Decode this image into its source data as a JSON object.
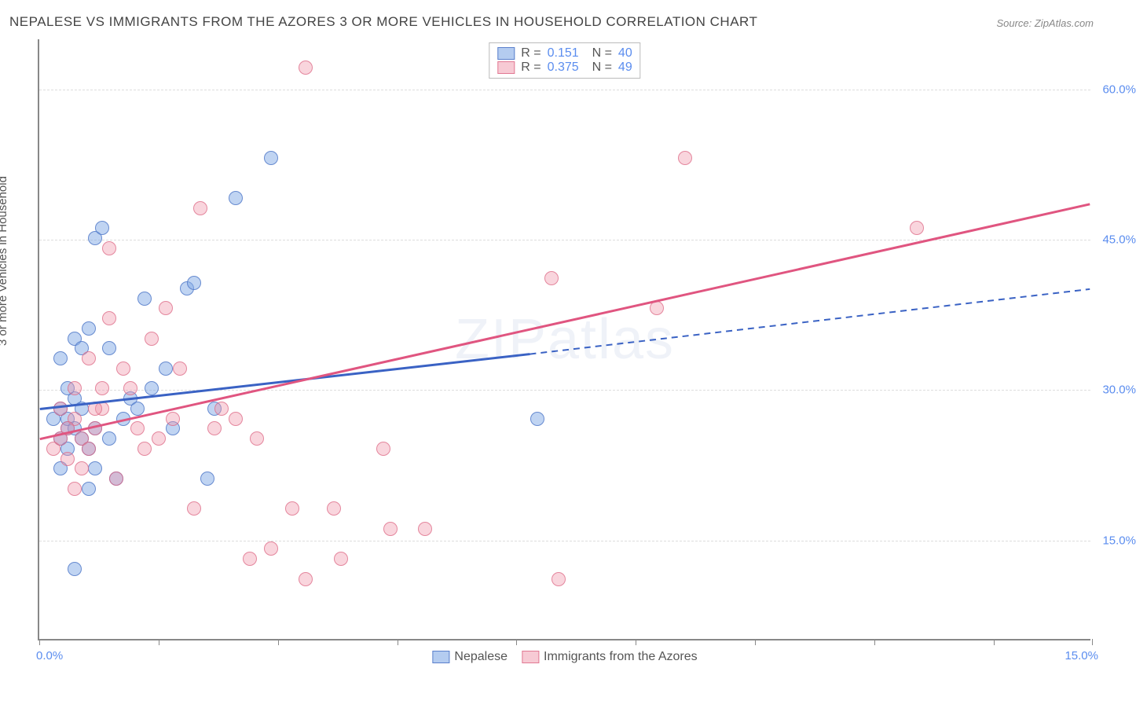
{
  "title": "NEPALESE VS IMMIGRANTS FROM THE AZORES 3 OR MORE VEHICLES IN HOUSEHOLD CORRELATION CHART",
  "source": "Source: ZipAtlas.com",
  "ylabel": "3 or more Vehicles in Household",
  "watermark": "ZIPatlas",
  "chart": {
    "type": "scatter",
    "xlim": [
      0,
      15
    ],
    "ylim": [
      5,
      65
    ],
    "y_ticks": [
      15,
      30,
      45,
      60
    ],
    "y_tick_labels": [
      "15.0%",
      "30.0%",
      "45.0%",
      "60.0%"
    ],
    "x_ticks": [
      0,
      1.7,
      3.4,
      5.1,
      6.8,
      8.5,
      10.2,
      11.9,
      13.6,
      15.0
    ],
    "x_axis_labels": {
      "left": "0.0%",
      "right": "15.0%"
    },
    "point_radius": 9,
    "background_color": "#ffffff",
    "grid_color": "#dddddd",
    "series": [
      {
        "name": "Nepalese",
        "key": "a",
        "color": "#82aae6",
        "border": "#5078c8",
        "R": "0.151",
        "N": "40",
        "line": {
          "x1": 0,
          "y1": 28,
          "x2_solid": 7,
          "y2_solid": 33.5,
          "x2_dashed": 15,
          "y2_dashed": 40,
          "color": "#3a62c4",
          "width": 3
        },
        "points": [
          [
            0.2,
            27
          ],
          [
            0.3,
            25
          ],
          [
            0.4,
            26
          ],
          [
            0.3,
            28
          ],
          [
            0.4,
            24
          ],
          [
            0.5,
            29
          ],
          [
            0.3,
            22
          ],
          [
            0.4,
            30
          ],
          [
            0.5,
            35
          ],
          [
            0.6,
            34
          ],
          [
            0.3,
            33
          ],
          [
            0.7,
            36
          ],
          [
            0.4,
            27
          ],
          [
            0.5,
            26
          ],
          [
            0.6,
            28
          ],
          [
            0.8,
            45
          ],
          [
            0.9,
            46
          ],
          [
            0.7,
            20
          ],
          [
            0.8,
            22
          ],
          [
            1.0,
            25
          ],
          [
            1.1,
            21
          ],
          [
            1.3,
            29
          ],
          [
            1.4,
            28
          ],
          [
            1.6,
            30
          ],
          [
            1.9,
            26
          ],
          [
            2.1,
            40
          ],
          [
            2.2,
            40.5
          ],
          [
            2.4,
            21
          ],
          [
            2.5,
            28
          ],
          [
            0.5,
            12
          ],
          [
            2.8,
            49
          ],
          [
            3.3,
            53
          ],
          [
            7.1,
            27
          ],
          [
            0.8,
            26
          ],
          [
            1.5,
            39
          ],
          [
            1.0,
            34
          ],
          [
            1.2,
            27
          ],
          [
            0.6,
            25
          ],
          [
            0.7,
            24
          ],
          [
            1.8,
            32
          ]
        ]
      },
      {
        "name": "Immigrants from the Azores",
        "key": "b",
        "color": "#f096aa",
        "border": "#dc6482",
        "R": "0.375",
        "N": "49",
        "line": {
          "x1": 0,
          "y1": 25,
          "x2_solid": 15,
          "y2_solid": 48.5,
          "color": "#e05580",
          "width": 3
        },
        "points": [
          [
            0.2,
            24
          ],
          [
            0.3,
            25
          ],
          [
            0.4,
            23
          ],
          [
            0.3,
            28
          ],
          [
            0.5,
            27
          ],
          [
            0.6,
            25
          ],
          [
            0.5,
            30
          ],
          [
            0.7,
            24
          ],
          [
            0.8,
            26
          ],
          [
            0.9,
            28
          ],
          [
            0.4,
            26
          ],
          [
            0.7,
            33
          ],
          [
            0.9,
            30
          ],
          [
            1.0,
            37
          ],
          [
            1.0,
            44
          ],
          [
            1.2,
            32
          ],
          [
            1.4,
            26
          ],
          [
            1.5,
            24
          ],
          [
            1.6,
            35
          ],
          [
            1.8,
            38
          ],
          [
            1.9,
            27
          ],
          [
            2.0,
            32
          ],
          [
            2.2,
            18
          ],
          [
            2.3,
            48
          ],
          [
            2.5,
            26
          ],
          [
            2.8,
            27
          ],
          [
            3.0,
            13
          ],
          [
            3.1,
            25
          ],
          [
            3.3,
            14
          ],
          [
            3.6,
            18
          ],
          [
            3.8,
            11
          ],
          [
            3.8,
            62
          ],
          [
            4.2,
            18
          ],
          [
            4.3,
            13
          ],
          [
            4.9,
            24
          ],
          [
            5.0,
            16
          ],
          [
            5.5,
            16
          ],
          [
            7.3,
            41
          ],
          [
            7.4,
            11
          ],
          [
            8.8,
            38
          ],
          [
            9.2,
            53
          ],
          [
            12.5,
            46
          ],
          [
            1.1,
            21
          ],
          [
            0.6,
            22
          ],
          [
            0.5,
            20
          ],
          [
            1.3,
            30
          ],
          [
            2.6,
            28
          ],
          [
            0.8,
            28
          ],
          [
            1.7,
            25
          ]
        ]
      }
    ]
  },
  "legend_bottom": [
    {
      "key": "a",
      "label": "Nepalese"
    },
    {
      "key": "b",
      "label": "Immigrants from the Azores"
    }
  ]
}
